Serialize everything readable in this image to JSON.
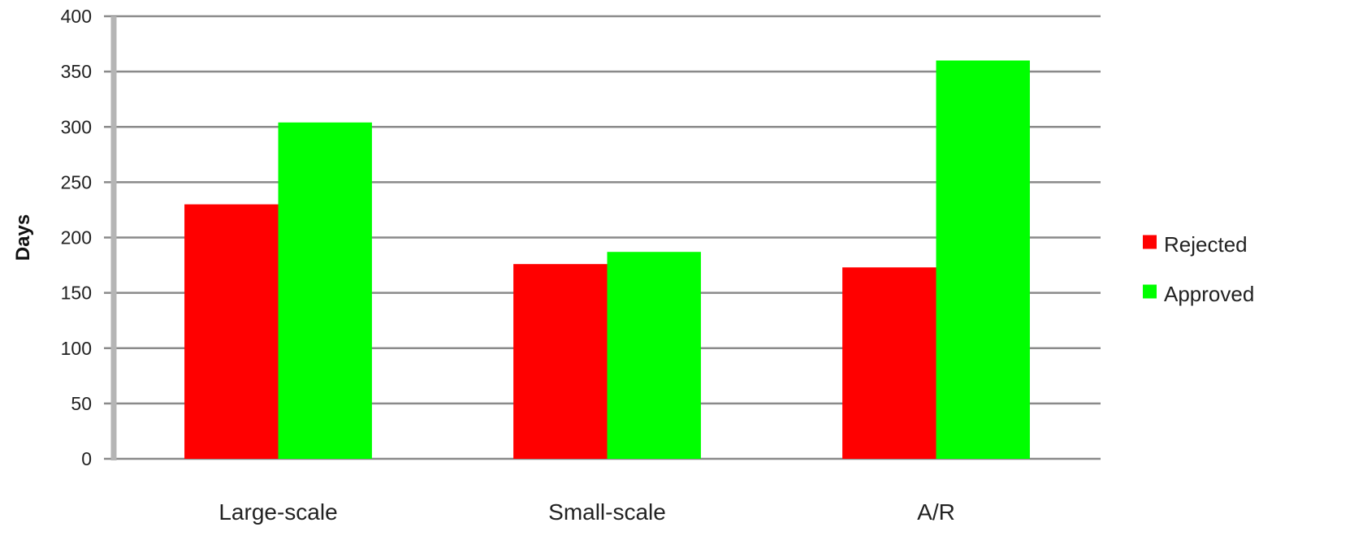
{
  "chart_data": {
    "type": "bar",
    "title": "",
    "xlabel": "",
    "ylabel": "Days",
    "ylim": [
      0,
      400
    ],
    "yticks": [
      0,
      50,
      100,
      150,
      200,
      250,
      300,
      350,
      400
    ],
    "categories": [
      "Large-scale",
      "Small-scale",
      "A/R"
    ],
    "series": [
      {
        "name": "Rejected",
        "color": "#ff0000",
        "values": [
          230,
          176,
          173
        ]
      },
      {
        "name": "Approved",
        "color": "#00ff00",
        "values": [
          304,
          187,
          360
        ]
      }
    ],
    "grid": true,
    "legend_position": "right"
  }
}
